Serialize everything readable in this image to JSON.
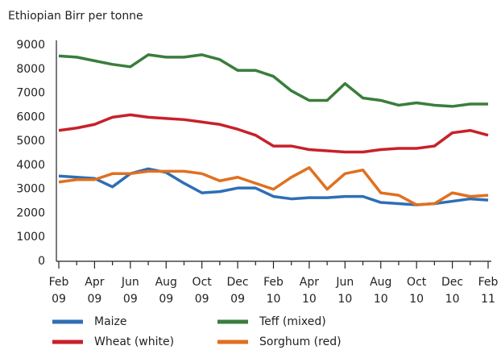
{
  "chart_data": {
    "type": "line",
    "y_label": "Ethiopian Birr per tonne",
    "categories": [
      "Feb 09",
      null,
      "Apr 09",
      null,
      "Jun 09",
      null,
      "Aug 09",
      null,
      "Oct 09",
      null,
      "Dec 09",
      null,
      "Feb 10",
      null,
      "Apr 10",
      null,
      "Jun 10",
      null,
      "Aug 10",
      null,
      "Oct 10",
      null,
      "Dec 10",
      null,
      "Feb 11"
    ],
    "series": [
      {
        "name": "Maize",
        "color": "#2f6eb5",
        "values": [
          3550,
          3500,
          3450,
          3100,
          3650,
          3850,
          3700,
          3250,
          2850,
          2900,
          3050,
          3050,
          2700,
          2600,
          2650,
          2650,
          2700,
          2700,
          2450,
          2400,
          2350,
          2400,
          2500,
          2600,
          2550
        ]
      },
      {
        "name": "Teff (mixed)",
        "color": "#3a7d3c",
        "values": [
          8550,
          8500,
          8350,
          8200,
          8100,
          8600,
          8500,
          8500,
          8600,
          8400,
          7950,
          7950,
          7700,
          7100,
          6700,
          6700,
          7400,
          6800,
          6700,
          6500,
          6600,
          6500,
          6450,
          6550,
          6550
        ]
      },
      {
        "name": "Wheat (white)",
        "color": "#c8202a",
        "values": [
          5450,
          5550,
          5700,
          6000,
          6100,
          6000,
          5950,
          5900,
          5800,
          5700,
          5500,
          5250,
          4800,
          4800,
          4650,
          4600,
          4550,
          4550,
          4650,
          4700,
          4700,
          4800,
          5350,
          5450,
          5250
        ]
      },
      {
        "name": "Sorghum (red)",
        "color": "#e07020",
        "values": [
          3300,
          3400,
          3400,
          3650,
          3650,
          3750,
          3750,
          3750,
          3650,
          3350,
          3500,
          3250,
          3000,
          3500,
          3900,
          3000,
          3650,
          3800,
          2850,
          2750,
          2350,
          2400,
          2850,
          2700,
          2750
        ]
      }
    ],
    "ylim": [
      0,
      9000
    ],
    "yticks": [
      0,
      1000,
      2000,
      3000,
      4000,
      5000,
      6000,
      7000,
      8000,
      9000
    ],
    "grid": false
  }
}
